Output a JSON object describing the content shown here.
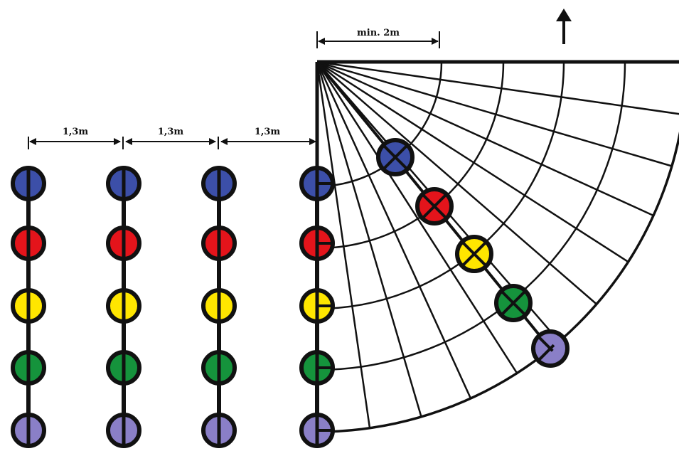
{
  "dimensions": {
    "spacing_labels": [
      "1,3m",
      "1,3m",
      "1,3m"
    ],
    "min_distance_label": "min. 2m"
  },
  "direction": {
    "arrow": "up-arrow-icon"
  },
  "colors": {
    "outline": "#111111",
    "row_colors": [
      "#3c4fa8",
      "#e4141b",
      "#ffe600",
      "#15933c",
      "#8a7fc7"
    ]
  },
  "rows": [
    {
      "name": "blue"
    },
    {
      "name": "red"
    },
    {
      "name": "yellow"
    },
    {
      "name": "green"
    },
    {
      "name": "purple"
    }
  ],
  "columns": 4,
  "fan": {
    "rays": 10,
    "arcs": 5
  }
}
